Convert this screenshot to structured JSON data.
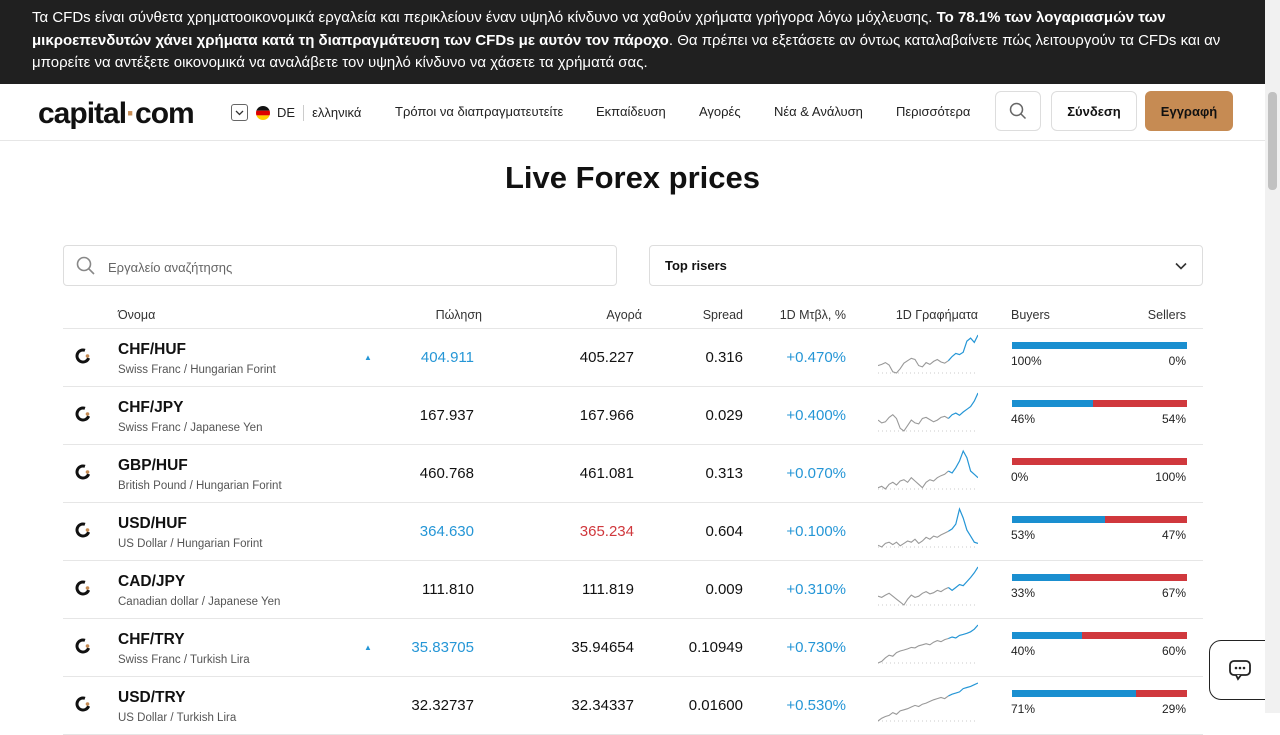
{
  "warning": {
    "part1": "Τα CFDs είναι σύνθετα χρηματοοικονομικά εργαλεία και περικλείουν έναν υψηλό κίνδυνο να χαθούν χρήματα γρήγορα λόγω μόχλευσης. ",
    "bold": "Το 78.1% των λογαριασμών των μικροεπενδυτών χάνει χρήματα κατά τη διαπραγμάτευση των CFDs με αυτόν τον πάροχο",
    "part2": ". Θα πρέπει να εξετάσετε αν όντως καταλαβαίνετε πώς λειτουργούν τα CFDs και αν μπορείτε να αντέξετε οικονομικά να αναλάβετε τον υψηλό κίνδυνο να χάσετε τα χρήματά σας."
  },
  "header": {
    "logo_left": "capital",
    "logo_right": "com",
    "country": "DE",
    "language": "ελληνικά",
    "nav": [
      "Τρόποι να διαπραγματευτείτε",
      "Εκπαίδευση",
      "Αγορές",
      "Νέα & Ανάλυση",
      "Περισσότερα"
    ],
    "login": "Σύνδεση",
    "signup": "Εγγραφή"
  },
  "page_title": "Live Forex prices",
  "search": {
    "placeholder": "Εργαλείο αναζήτησης"
  },
  "filter": {
    "selected": "Top risers"
  },
  "table": {
    "headers": {
      "name": "Όνομα",
      "sell": "Πώληση",
      "buy": "Αγορά",
      "spread": "Spread",
      "change": "1D Μτβλ, %",
      "chart": "1D Γραφήματα",
      "buyers": "Buyers",
      "sellers": "Sellers"
    },
    "rows": [
      {
        "pair": "CHF/HUF",
        "name": "Swiss Franc / Hungarian Forint",
        "sell": "404.911",
        "buy": "405.227",
        "spread": "0.316",
        "change": "+0.470%",
        "buyers": "100%",
        "sellers": "0%",
        "buyers_frac": 1.0,
        "arrow": "▲",
        "sell_color": "#2596d6",
        "buy_color": "#111111",
        "spark": [
          40,
          42,
          45,
          41,
          30,
          28,
          35,
          44,
          48,
          52,
          50,
          40,
          38,
          45,
          42,
          47,
          50,
          46,
          44,
          48,
          55,
          60,
          58,
          62,
          80,
          85,
          78,
          90
        ]
      },
      {
        "pair": "CHF/JPY",
        "name": "Swiss Franc / Japanese Yen",
        "sell": "167.937",
        "buy": "167.966",
        "spread": "0.029",
        "change": "+0.400%",
        "buyers": "46%",
        "sellers": "54%",
        "buyers_frac": 0.46,
        "arrow": "",
        "sell_color": "#111111",
        "buy_color": "#111111",
        "spark": [
          45,
          40,
          42,
          50,
          55,
          48,
          30,
          25,
          35,
          45,
          40,
          38,
          48,
          50,
          46,
          42,
          45,
          50,
          52,
          48,
          55,
          58,
          54,
          60,
          65,
          70,
          80,
          95
        ]
      },
      {
        "pair": "GBP/HUF",
        "name": "British Pound / Hungarian Forint",
        "sell": "460.768",
        "buy": "461.081",
        "spread": "0.313",
        "change": "+0.070%",
        "buyers": "0%",
        "sellers": "100%",
        "buyers_frac": 0.0,
        "arrow": "",
        "sell_color": "#111111",
        "buy_color": "#111111",
        "spark": [
          20,
          22,
          18,
          25,
          28,
          24,
          30,
          32,
          28,
          35,
          30,
          25,
          20,
          28,
          32,
          30,
          35,
          38,
          40,
          45,
          42,
          50,
          60,
          75,
          65,
          45,
          40,
          35
        ]
      },
      {
        "pair": "USD/HUF",
        "name": "US Dollar / Hungarian Forint",
        "sell": "364.630",
        "buy": "365.234",
        "spread": "0.604",
        "change": "+0.100%",
        "buyers": "53%",
        "sellers": "47%",
        "buyers_frac": 0.53,
        "arrow": "",
        "sell_color": "#2596d6",
        "buy_color": "#d0383d",
        "spark": [
          25,
          22,
          28,
          30,
          26,
          30,
          24,
          28,
          32,
          30,
          35,
          28,
          32,
          38,
          35,
          40,
          38,
          42,
          45,
          48,
          52,
          60,
          85,
          70,
          50,
          40,
          30,
          28
        ]
      },
      {
        "pair": "CAD/JPY",
        "name": "Canadian dollar / Japanese Yen",
        "sell": "111.810",
        "buy": "111.819",
        "spread": "0.009",
        "change": "+0.310%",
        "buyers": "33%",
        "sellers": "67%",
        "buyers_frac": 0.33,
        "arrow": "",
        "sell_color": "#111111",
        "buy_color": "#111111",
        "spark": [
          40,
          38,
          42,
          45,
          40,
          35,
          30,
          25,
          35,
          42,
          38,
          40,
          45,
          48,
          44,
          46,
          50,
          48,
          52,
          55,
          50,
          55,
          60,
          58,
          65,
          72,
          80,
          90
        ]
      },
      {
        "pair": "CHF/TRY",
        "name": "Swiss Franc / Turkish Lira",
        "sell": "35.83705",
        "buy": "35.94654",
        "spread": "0.10949",
        "change": "+0.730%",
        "buyers": "40%",
        "sellers": "60%",
        "buyers_frac": 0.4,
        "arrow": "▲",
        "sell_color": "#2596d6",
        "buy_color": "#111111",
        "spark": [
          15,
          18,
          25,
          30,
          28,
          35,
          38,
          40,
          42,
          45,
          44,
          48,
          50,
          52,
          50,
          55,
          58,
          56,
          60,
          62,
          65,
          63,
          68,
          70,
          72,
          75,
          80,
          88
        ]
      },
      {
        "pair": "USD/TRY",
        "name": "US Dollar / Turkish Lira",
        "sell": "32.32737",
        "buy": "32.34337",
        "spread": "0.01600",
        "change": "+0.530%",
        "buyers": "71%",
        "sellers": "29%",
        "buyers_frac": 0.71,
        "arrow": "",
        "sell_color": "#111111",
        "buy_color": "#111111",
        "spark": [
          20,
          25,
          28,
          30,
          35,
          32,
          38,
          40,
          42,
          45,
          48,
          46,
          50,
          52,
          55,
          58,
          60,
          62,
          60,
          65,
          68,
          70,
          72,
          78,
          80,
          82,
          85,
          88
        ]
      }
    ]
  },
  "colors": {
    "accent": "#c68b53",
    "up": "#2596d6",
    "down": "#d0383d"
  }
}
